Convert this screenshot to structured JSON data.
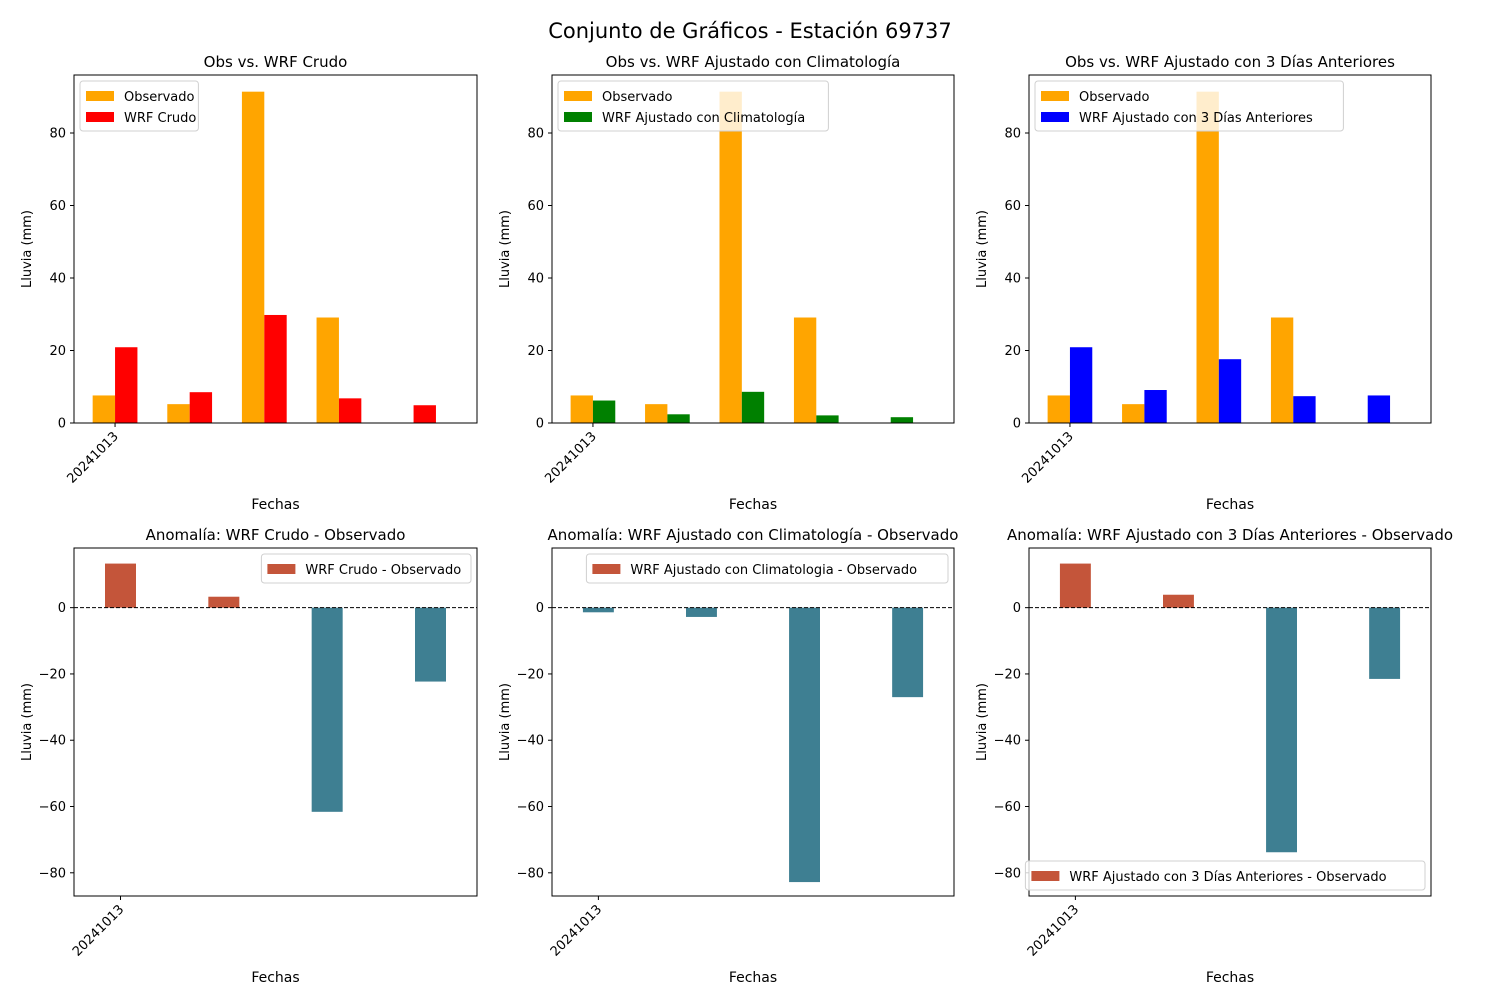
{
  "suptitle": "Conjunto de Gráficos - Estación 69737",
  "colors": {
    "observado": "#FFA500",
    "wrf_crudo": "#FF0000",
    "wrf_clim": "#008000",
    "wrf_3dias": "#0000FF",
    "anomaly_positive": "#C4553A",
    "anomaly_negative": "#3E7F92",
    "zero_line": "#000000"
  },
  "chart_data": [
    {
      "type": "bar",
      "title": "Obs vs. WRF Crudo",
      "xlabel": "Fechas",
      "ylabel": "Lluvia (mm)",
      "categories": [
        "20241013",
        "",
        "",
        "",
        ""
      ],
      "tick_labels": [
        "20241013"
      ],
      "ylim": [
        0,
        96
      ],
      "yticks": [
        0,
        20,
        40,
        60,
        80
      ],
      "legend": "top-left",
      "series": [
        {
          "name": "Observado",
          "color_key": "observado",
          "values": [
            7.6,
            5.2,
            91.4,
            29.1,
            0
          ]
        },
        {
          "name": "WRF Crudo",
          "color_key": "wrf_crudo",
          "values": [
            20.9,
            8.5,
            29.8,
            6.8,
            4.9
          ]
        }
      ]
    },
    {
      "type": "bar",
      "title": "Obs vs. WRF Ajustado con Climatología",
      "xlabel": "Fechas",
      "ylabel": "Lluvia (mm)",
      "categories": [
        "20241013",
        "",
        "",
        "",
        ""
      ],
      "tick_labels": [
        "20241013"
      ],
      "ylim": [
        0,
        96
      ],
      "yticks": [
        0,
        20,
        40,
        60,
        80
      ],
      "legend": "top-left",
      "series": [
        {
          "name": "Observado",
          "color_key": "observado",
          "values": [
            7.6,
            5.2,
            91.4,
            29.1,
            0
          ]
        },
        {
          "name": "WRF Ajustado con Climatología",
          "color_key": "wrf_clim",
          "values": [
            6.2,
            2.4,
            8.6,
            2.1,
            1.6
          ]
        }
      ]
    },
    {
      "type": "bar",
      "title": "Obs vs. WRF Ajustado con 3 Días Anteriores",
      "xlabel": "Fechas",
      "ylabel": "Lluvia (mm)",
      "categories": [
        "20241013",
        "",
        "",
        "",
        ""
      ],
      "tick_labels": [
        "20241013"
      ],
      "ylim": [
        0,
        96
      ],
      "yticks": [
        0,
        20,
        40,
        60,
        80
      ],
      "legend": "top-left",
      "series": [
        {
          "name": "Observado",
          "color_key": "observado",
          "values": [
            7.6,
            5.2,
            91.4,
            29.1,
            0
          ]
        },
        {
          "name": "WRF Ajustado con 3 Días Anteriores",
          "color_key": "wrf_3dias",
          "values": [
            20.9,
            9.1,
            17.6,
            7.4,
            7.6
          ]
        }
      ]
    },
    {
      "type": "bar",
      "title": "Anomalía: WRF Crudo - Observado",
      "xlabel": "Fechas",
      "ylabel": "Lluvia (mm)",
      "categories": [
        "20241013",
        "",
        "",
        ""
      ],
      "tick_labels": [
        "20241013"
      ],
      "ylim": [
        -87,
        18
      ],
      "yticks": [
        -80,
        -60,
        -40,
        -20,
        0
      ],
      "legend": "top-right",
      "series": [
        {
          "name": "WRF Crudo - Observado",
          "values": [
            13.3,
            3.3,
            -61.6,
            -22.3
          ]
        }
      ]
    },
    {
      "type": "bar",
      "title": "Anomalía: WRF Ajustado con Climatología - Observado",
      "xlabel": "Fechas",
      "ylabel": "Lluvia (mm)",
      "categories": [
        "20241013",
        "",
        "",
        ""
      ],
      "tick_labels": [
        "20241013"
      ],
      "ylim": [
        -87,
        18
      ],
      "yticks": [
        -80,
        -60,
        -40,
        -20,
        0
      ],
      "legend": "top-right",
      "series": [
        {
          "name": "WRF Ajustado con Climatologia - Observado",
          "values": [
            -1.4,
            -2.8,
            -82.8,
            -27.0
          ]
        }
      ]
    },
    {
      "type": "bar",
      "title": "Anomalía: WRF Ajustado con 3 Días Anteriores - Observado",
      "xlabel": "Fechas",
      "ylabel": "Lluvia (mm)",
      "categories": [
        "20241013",
        "",
        "",
        ""
      ],
      "tick_labels": [
        "20241013"
      ],
      "ylim": [
        -87,
        18
      ],
      "yticks": [
        -80,
        -60,
        -40,
        -20,
        0
      ],
      "legend": "bottom-right",
      "series": [
        {
          "name": "WRF Ajustado con 3 Días Anteriores - Observado",
          "values": [
            13.3,
            3.9,
            -73.8,
            -21.5
          ]
        }
      ]
    }
  ]
}
